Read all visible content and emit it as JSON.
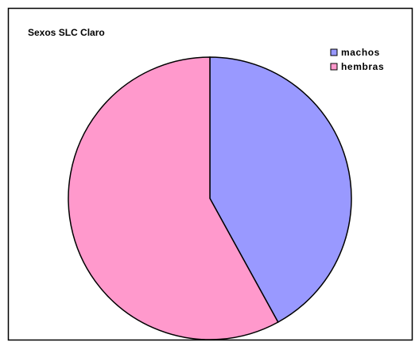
{
  "chart_data": {
    "type": "pie",
    "title": "Sexos SLC Claro",
    "categories": [
      "machos",
      "hembras"
    ],
    "values": [
      42,
      58
    ],
    "colors": [
      "#9999FF",
      "#FF99CC"
    ],
    "start_angle_deg": 0,
    "direction": "clockwise",
    "legend_position": "top-right",
    "border": true
  }
}
